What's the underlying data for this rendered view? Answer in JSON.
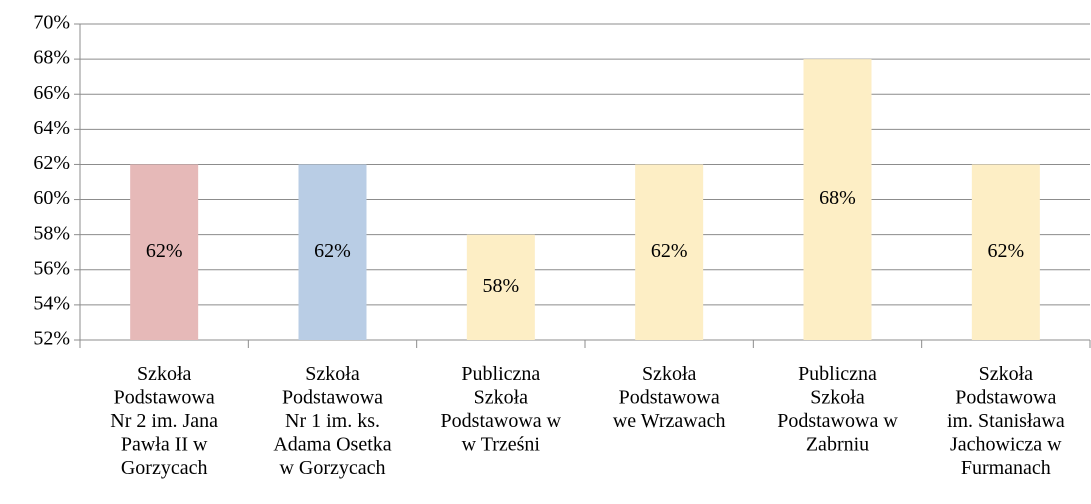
{
  "chart_data": {
    "type": "bar",
    "categories": [
      "Szkoła\nPodstawowa\nNr 2 im. Jana\nPawła II w\nGorzycach",
      "Szkoła\nPodstawowa\nNr 1 im. ks.\nAdama Osetka\nw Gorzycach",
      "Publiczna\nSzkoła\nPodstawowa w\nw Trześni",
      "Szkoła\nPodstawowa\nwe Wrzawach",
      "Publiczna\nSzkoła\nPodstawowa w\nZabrniu",
      "Szkoła\nPodstawowa\nim. Stanisława\nJachowicza w\nFurmanach"
    ],
    "values": [
      62,
      62,
      58,
      62,
      68,
      62
    ],
    "value_labels": [
      "62%",
      "62%",
      "58%",
      "62%",
      "68%",
      "62%"
    ],
    "colors": [
      "#e6b9b8",
      "#b9cde5",
      "#fdeec5",
      "#fdeec5",
      "#fdeec5",
      "#fdeec5"
    ],
    "ylim": [
      52,
      70
    ],
    "yticks": [
      {
        "value": 52,
        "label": "52%"
      },
      {
        "value": 54,
        "label": "54%"
      },
      {
        "value": 56,
        "label": "56%"
      },
      {
        "value": 58,
        "label": "58%"
      },
      {
        "value": 60,
        "label": "60%"
      },
      {
        "value": 62,
        "label": "62%"
      },
      {
        "value": 64,
        "label": "64%"
      },
      {
        "value": 66,
        "label": "66%"
      },
      {
        "value": 68,
        "label": "68%"
      },
      {
        "value": 70,
        "label": "70%"
      }
    ],
    "grid": true
  }
}
